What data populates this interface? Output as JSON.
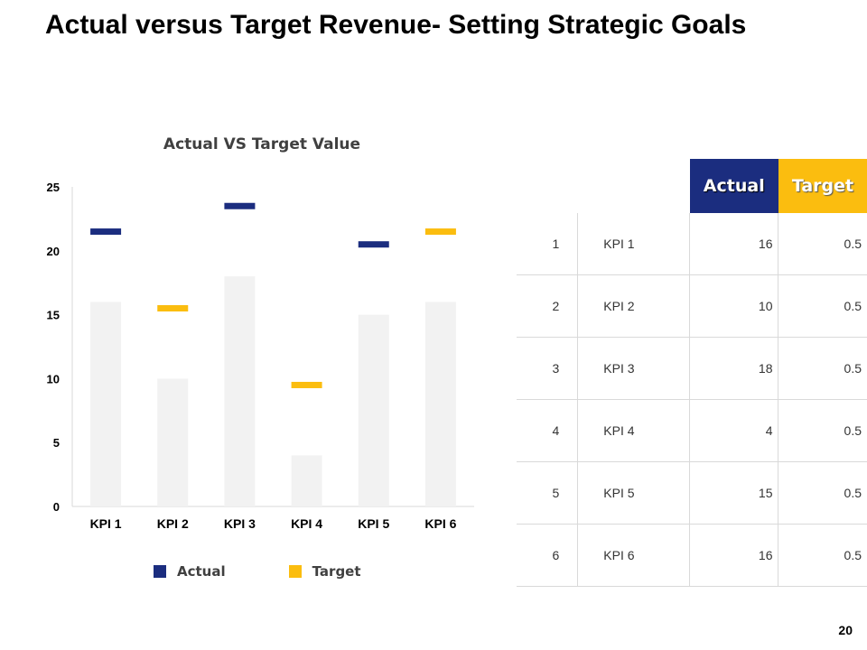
{
  "page": {
    "title": "Actual versus Target Revenue- Setting Strategic Goals",
    "page_number": "20"
  },
  "colors": {
    "actual": "#1b2d7f",
    "target": "#fbbd0f",
    "bar": "#f2f2f2"
  },
  "chart_data": {
    "type": "bar",
    "title": "Actual  VS Target Value",
    "categories": [
      "KPI 1",
      "KPI 2",
      "KPI 3",
      "KPI 4",
      "KPI 5",
      "KPI 6"
    ],
    "values": [
      16,
      10,
      18,
      4,
      15,
      16
    ],
    "series": [
      {
        "name": "Actual",
        "marker_values": [
          21.5,
          null,
          23.5,
          null,
          20.5,
          null
        ]
      },
      {
        "name": "Target",
        "marker_values": [
          null,
          15.5,
          null,
          9.5,
          null,
          21.5
        ]
      }
    ],
    "ylim": [
      0,
      25
    ],
    "yticks": [
      "0",
      "5",
      "10",
      "15",
      "20",
      "25"
    ],
    "legend": [
      "Actual",
      "Target"
    ],
    "xlabel": "",
    "ylabel": ""
  },
  "table": {
    "headers": {
      "actual": "Actual",
      "target": "Target"
    },
    "rows": [
      {
        "num": "1",
        "name": "KPI 1",
        "actual": "16",
        "target": "0.5"
      },
      {
        "num": "2",
        "name": "KPI 2",
        "actual": "10",
        "target": "0.5"
      },
      {
        "num": "3",
        "name": "KPI 3",
        "actual": "18",
        "target": "0.5"
      },
      {
        "num": "4",
        "name": "KPI 4",
        "actual": "4",
        "target": "0.5"
      },
      {
        "num": "5",
        "name": "KPI 5",
        "actual": "15",
        "target": "0.5"
      },
      {
        "num": "6",
        "name": "KPI 6",
        "actual": "16",
        "target": "0.5"
      }
    ]
  }
}
